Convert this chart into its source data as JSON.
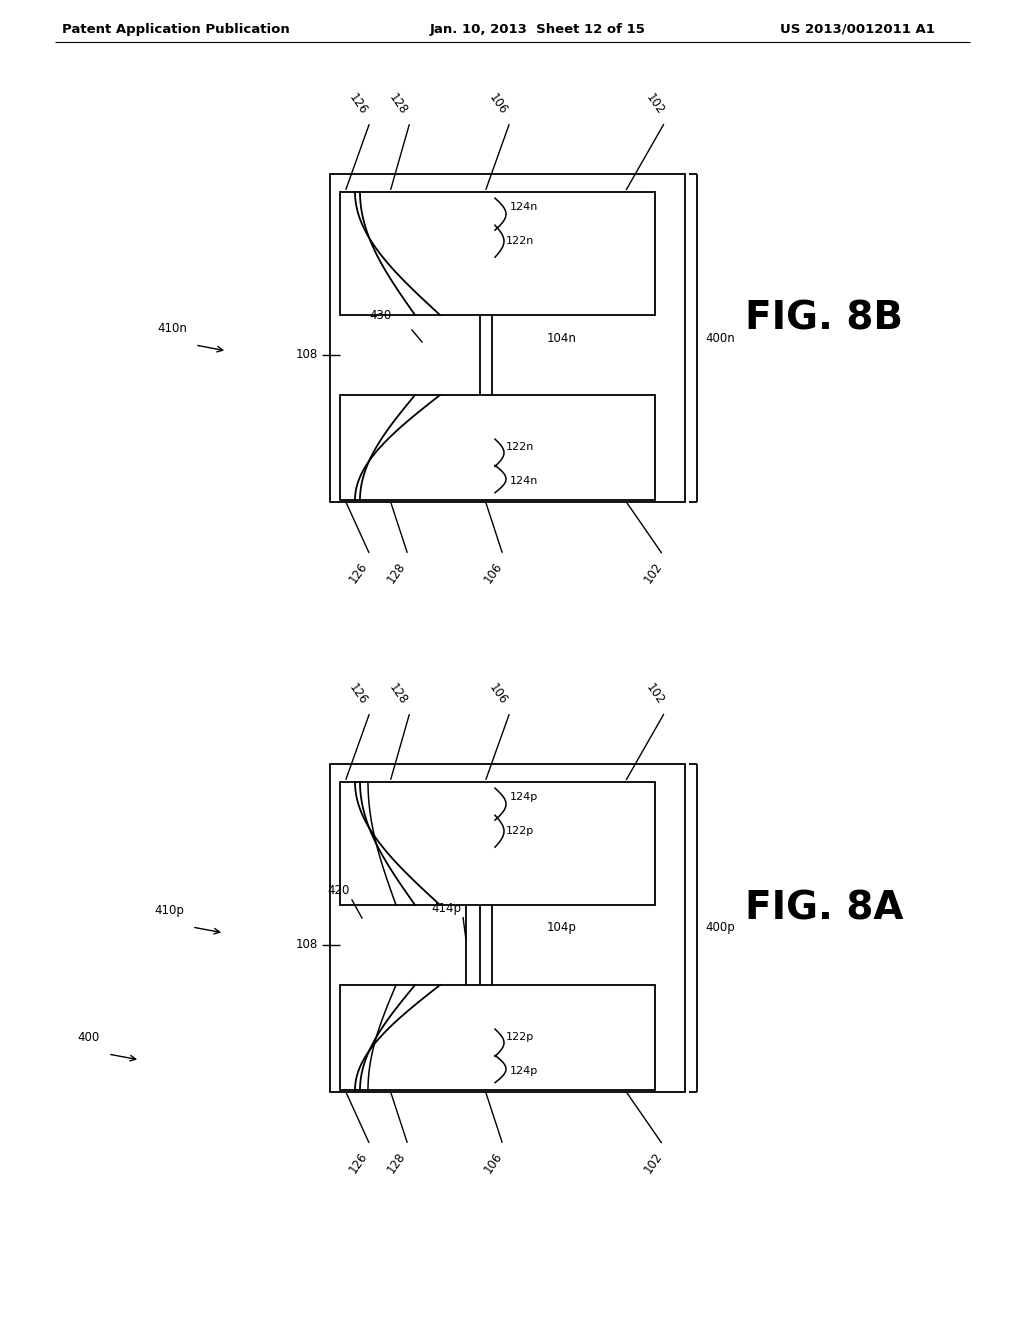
{
  "header_left": "Patent Application Publication",
  "header_center": "Jan. 10, 2013  Sheet 12 of 15",
  "header_right": "US 2013/0012011 A1",
  "fig_a_label": "FIG. 8A",
  "fig_b_label": "FIG. 8B",
  "background": "#ffffff",
  "line_color": "#000000"
}
